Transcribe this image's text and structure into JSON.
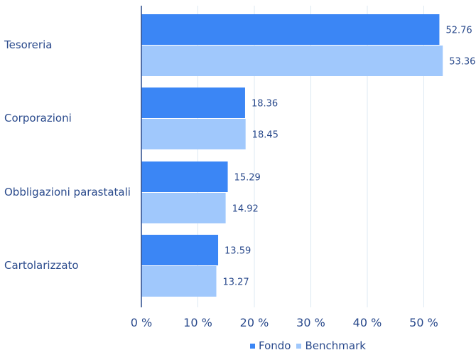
{
  "chart_data": {
    "type": "bar",
    "orientation": "horizontal",
    "categories": [
      "Tesoreria",
      "Corporazioni",
      "Obbligazioni parastatali",
      "Cartolarizzato"
    ],
    "series": [
      {
        "name": "Fondo",
        "color": "#3b86f5",
        "values": [
          52.76,
          18.36,
          15.29,
          13.59
        ],
        "labels": [
          "52.76",
          "18.36",
          "15.29",
          "13.59"
        ]
      },
      {
        "name": "Benchmark",
        "color": "#a0c8fc",
        "values": [
          53.36,
          18.45,
          14.92,
          13.27
        ],
        "labels": [
          "53.36",
          "18.45",
          "14.92",
          "13.27"
        ]
      }
    ],
    "xlim": [
      0,
      55
    ],
    "ticks": [
      0,
      10,
      20,
      30,
      40,
      50
    ],
    "tick_labels": [
      "0 %",
      "10 %",
      "20 %",
      "30 %",
      "40 %",
      "50 %"
    ],
    "grid": true,
    "legend_position": "bottom",
    "colors": {
      "text": "#2a4a8c",
      "axis": "#2a4a8c",
      "grid": "#dde9f3"
    }
  }
}
